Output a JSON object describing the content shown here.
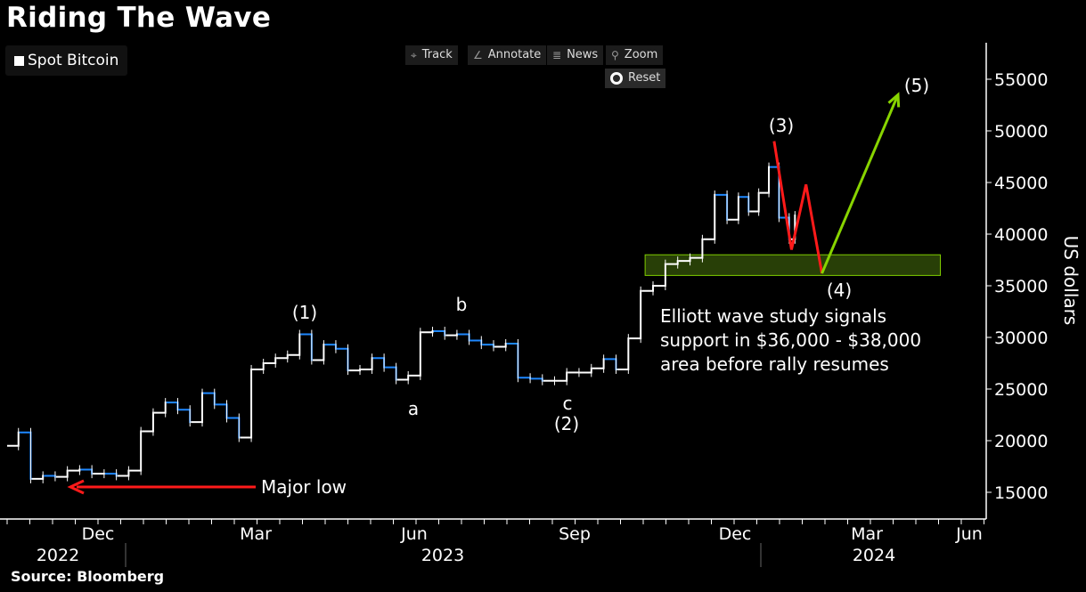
{
  "title": "Riding The Wave",
  "source": "Source: Bloomberg",
  "legend": {
    "label": "Spot Bitcoin",
    "color": "#ffffff"
  },
  "toolbar": {
    "track": "Track",
    "annotate": "Annotate",
    "news": "News",
    "zoom": "Zoom",
    "reset": "Reset",
    "icons": {
      "track": "crosshair-icon",
      "annotate": "pencil-icon",
      "news": "newspaper-icon",
      "zoom": "magnifier-icon",
      "reset": "reset-icon"
    }
  },
  "colors": {
    "up": "#ffffff",
    "down": "#1e88ff",
    "wave_red": "#ff1a1a",
    "wave_green": "#88d400",
    "zone_fill": "#2f4a08",
    "zone_stroke": "#7fcc00"
  },
  "annotations": {
    "w1": "(1)",
    "a": "a",
    "b": "b",
    "c": "c",
    "w2": "(2)",
    "w3": "(3)",
    "w4": "(4)",
    "w5": "(5)",
    "major_low": "Major low",
    "note": [
      "Elliott wave study signals",
      "support in $36,000 - $38,000",
      "area before rally resumes"
    ]
  },
  "chart_data": {
    "type": "line",
    "title": "Riding The Wave",
    "ylabel": "US dollars",
    "ylim": [
      13000,
      58000
    ],
    "yticks": [
      15000,
      20000,
      25000,
      30000,
      35000,
      40000,
      45000,
      50000,
      55000
    ],
    "xlim": [
      "2022-10-24",
      "2024-06-30"
    ],
    "xticks": [
      {
        "date": "2022-12-15",
        "label": "Dec"
      },
      {
        "date": "2023-03-15",
        "label": "Mar"
      },
      {
        "date": "2023-06-15",
        "label": "Jun"
      },
      {
        "date": "2023-09-15",
        "label": "Sep"
      },
      {
        "date": "2023-12-15",
        "label": "Dec"
      },
      {
        "date": "2024-03-15",
        "label": "Mar"
      },
      {
        "date": "2024-06-15",
        "label": "Jun"
      }
    ],
    "years": [
      "2022",
      "2023",
      "2024"
    ],
    "grid": false,
    "legend_position": "top-left",
    "series": [
      {
        "name": "Spot Bitcoin",
        "x": [
          "2022-10-24",
          "2022-10-31",
          "2022-11-07",
          "2022-11-14",
          "2022-11-21",
          "2022-11-28",
          "2022-12-05",
          "2022-12-12",
          "2022-12-19",
          "2022-12-26",
          "2023-01-02",
          "2023-01-09",
          "2023-01-16",
          "2023-01-23",
          "2023-01-30",
          "2023-02-06",
          "2023-02-13",
          "2023-02-20",
          "2023-02-27",
          "2023-03-06",
          "2023-03-13",
          "2023-03-20",
          "2023-03-27",
          "2023-04-03",
          "2023-04-10",
          "2023-04-17",
          "2023-04-24",
          "2023-05-01",
          "2023-05-08",
          "2023-05-15",
          "2023-05-22",
          "2023-05-29",
          "2023-06-05",
          "2023-06-12",
          "2023-06-19",
          "2023-06-26",
          "2023-07-03",
          "2023-07-10",
          "2023-07-17",
          "2023-07-24",
          "2023-07-31",
          "2023-08-07",
          "2023-08-14",
          "2023-08-21",
          "2023-08-28",
          "2023-09-04",
          "2023-09-11",
          "2023-09-18",
          "2023-09-25",
          "2023-10-02",
          "2023-10-09",
          "2023-10-16",
          "2023-10-23",
          "2023-10-30",
          "2023-11-06",
          "2023-11-13",
          "2023-11-20",
          "2023-11-27",
          "2023-12-04",
          "2023-12-11",
          "2023-12-18",
          "2023-12-25",
          "2024-01-01",
          "2024-01-08",
          "2024-01-15",
          "2024-01-22",
          "2024-01-26"
        ],
        "y": [
          19500,
          20800,
          16300,
          16600,
          16500,
          17100,
          17200,
          16800,
          16800,
          16600,
          17100,
          20900,
          22700,
          23700,
          23000,
          21800,
          24600,
          23500,
          22200,
          20300,
          26900,
          27500,
          28000,
          28300,
          30300,
          27800,
          29300,
          28900,
          26800,
          26900,
          28000,
          27100,
          25900,
          26300,
          30500,
          30600,
          30200,
          30300,
          29700,
          29300,
          29100,
          29400,
          26100,
          26000,
          25800,
          25800,
          26600,
          26600,
          27000,
          27900,
          26900,
          29900,
          34500,
          35000,
          37100,
          37400,
          37700,
          39500,
          43800,
          41400,
          43600,
          42200,
          44000,
          46500,
          41600,
          39500,
          41800
        ]
      }
    ],
    "projection": {
      "red_path": [
        {
          "date": "2024-01-11",
          "value": 49000
        },
        {
          "date": "2024-01-23",
          "value": 38500
        },
        {
          "date": "2024-02-02",
          "value": 44800
        },
        {
          "date": "2024-02-13",
          "value": 36200
        }
      ],
      "green_path": [
        {
          "date": "2024-02-13",
          "value": 36200
        },
        {
          "date": "2024-04-12",
          "value": 53500
        }
      ],
      "support_zone": {
        "from": "2023-10-25",
        "to": "2024-05-20",
        "low": 36000,
        "high": 38000
      }
    }
  }
}
